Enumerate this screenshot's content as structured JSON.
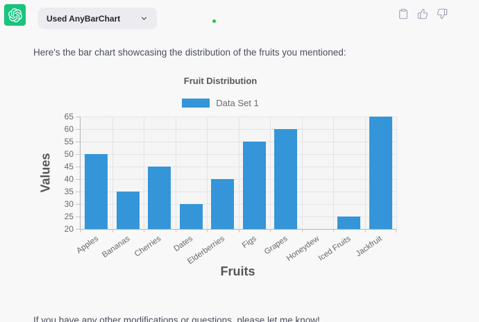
{
  "header": {
    "plugin_label": "Used AnyBarChart",
    "action_icons": [
      "copy-icon",
      "thumbs-up-icon",
      "thumbs-down-icon"
    ],
    "avatar_icon": "openai-logo-icon",
    "avatar_color": "#19c37d",
    "typing_dot_color": "#27c43d"
  },
  "assistant": {
    "intro_text": "Here's the bar chart showcasing the distribution of the fruits you mentioned:",
    "outro_text": "If you have any other modifications or questions, please let me know!"
  },
  "chart_data": {
    "type": "bar",
    "title": "Fruit Distribution",
    "legend": [
      "Data Set 1"
    ],
    "legend_position": "top",
    "categories": [
      "Apples",
      "Bananas",
      "Cherries",
      "Dates",
      "Elderberries",
      "Figs",
      "Grapes",
      "Honeydew",
      "Iced Fruits",
      "Jackfruit"
    ],
    "values": [
      50,
      35,
      45,
      30,
      40,
      55,
      60,
      20,
      25,
      65
    ],
    "xlabel": "Fruits",
    "ylabel": "Values",
    "ylim": [
      20,
      65
    ],
    "ytick_step": 5,
    "grid": true,
    "bar_color": "#3496d8"
  }
}
